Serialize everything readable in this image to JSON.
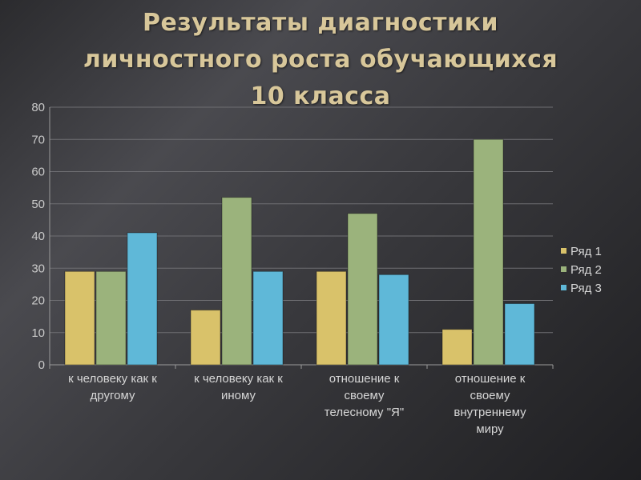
{
  "slide": {
    "title_lines": [
      "Результаты диагностики",
      "личностного роста обучающихся",
      "10 класса"
    ]
  },
  "chart_data": {
    "type": "bar",
    "title": "",
    "xlabel": "",
    "ylabel": "",
    "ylim": [
      0,
      80
    ],
    "yticks": [
      0,
      10,
      20,
      30,
      40,
      50,
      60,
      70,
      80
    ],
    "grid": true,
    "legend_position": "right",
    "categories": [
      [
        "к человеку как к",
        "другому"
      ],
      [
        "к человеку как к",
        "иному"
      ],
      [
        "отношение к",
        "своему",
        "телесному \"Я\""
      ],
      [
        "отношение к",
        "своему",
        "внутреннему",
        "миру"
      ]
    ],
    "series": [
      {
        "name": "Ряд 1",
        "color": "#d9c26a",
        "values": [
          29,
          17,
          29,
          11
        ]
      },
      {
        "name": "Ряд 2",
        "color": "#9bb37c",
        "values": [
          29,
          52,
          47,
          70
        ]
      },
      {
        "name": "Ряд 3",
        "color": "#5fb8d8",
        "values": [
          41,
          29,
          28,
          19
        ]
      }
    ]
  }
}
